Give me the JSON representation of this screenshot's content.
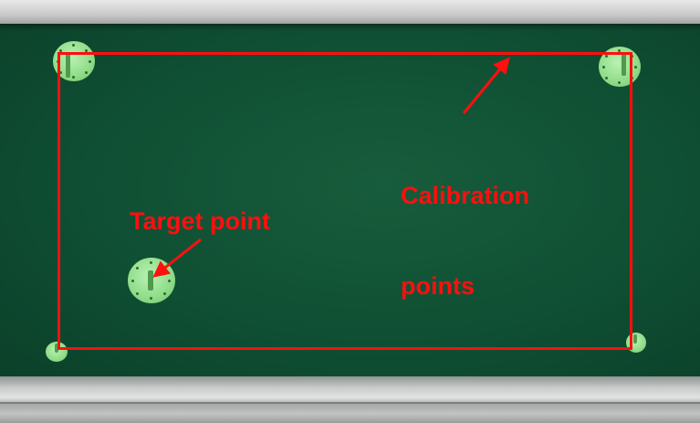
{
  "annotations": {
    "calibration_label_line1": "Calibration",
    "calibration_label_line2": "points",
    "target_label": "Target point"
  },
  "colors": {
    "annotation": "#ff0f0f",
    "board": "#0f4f33",
    "marker": "#8fdc88",
    "frame": "#c8c8c8"
  },
  "markers": [
    {
      "role": "calibration-point",
      "corner": "top-left"
    },
    {
      "role": "calibration-point",
      "corner": "top-right"
    },
    {
      "role": "calibration-point",
      "corner": "bottom-left"
    },
    {
      "role": "calibration-point",
      "corner": "bottom-right"
    },
    {
      "role": "target-point"
    }
  ]
}
